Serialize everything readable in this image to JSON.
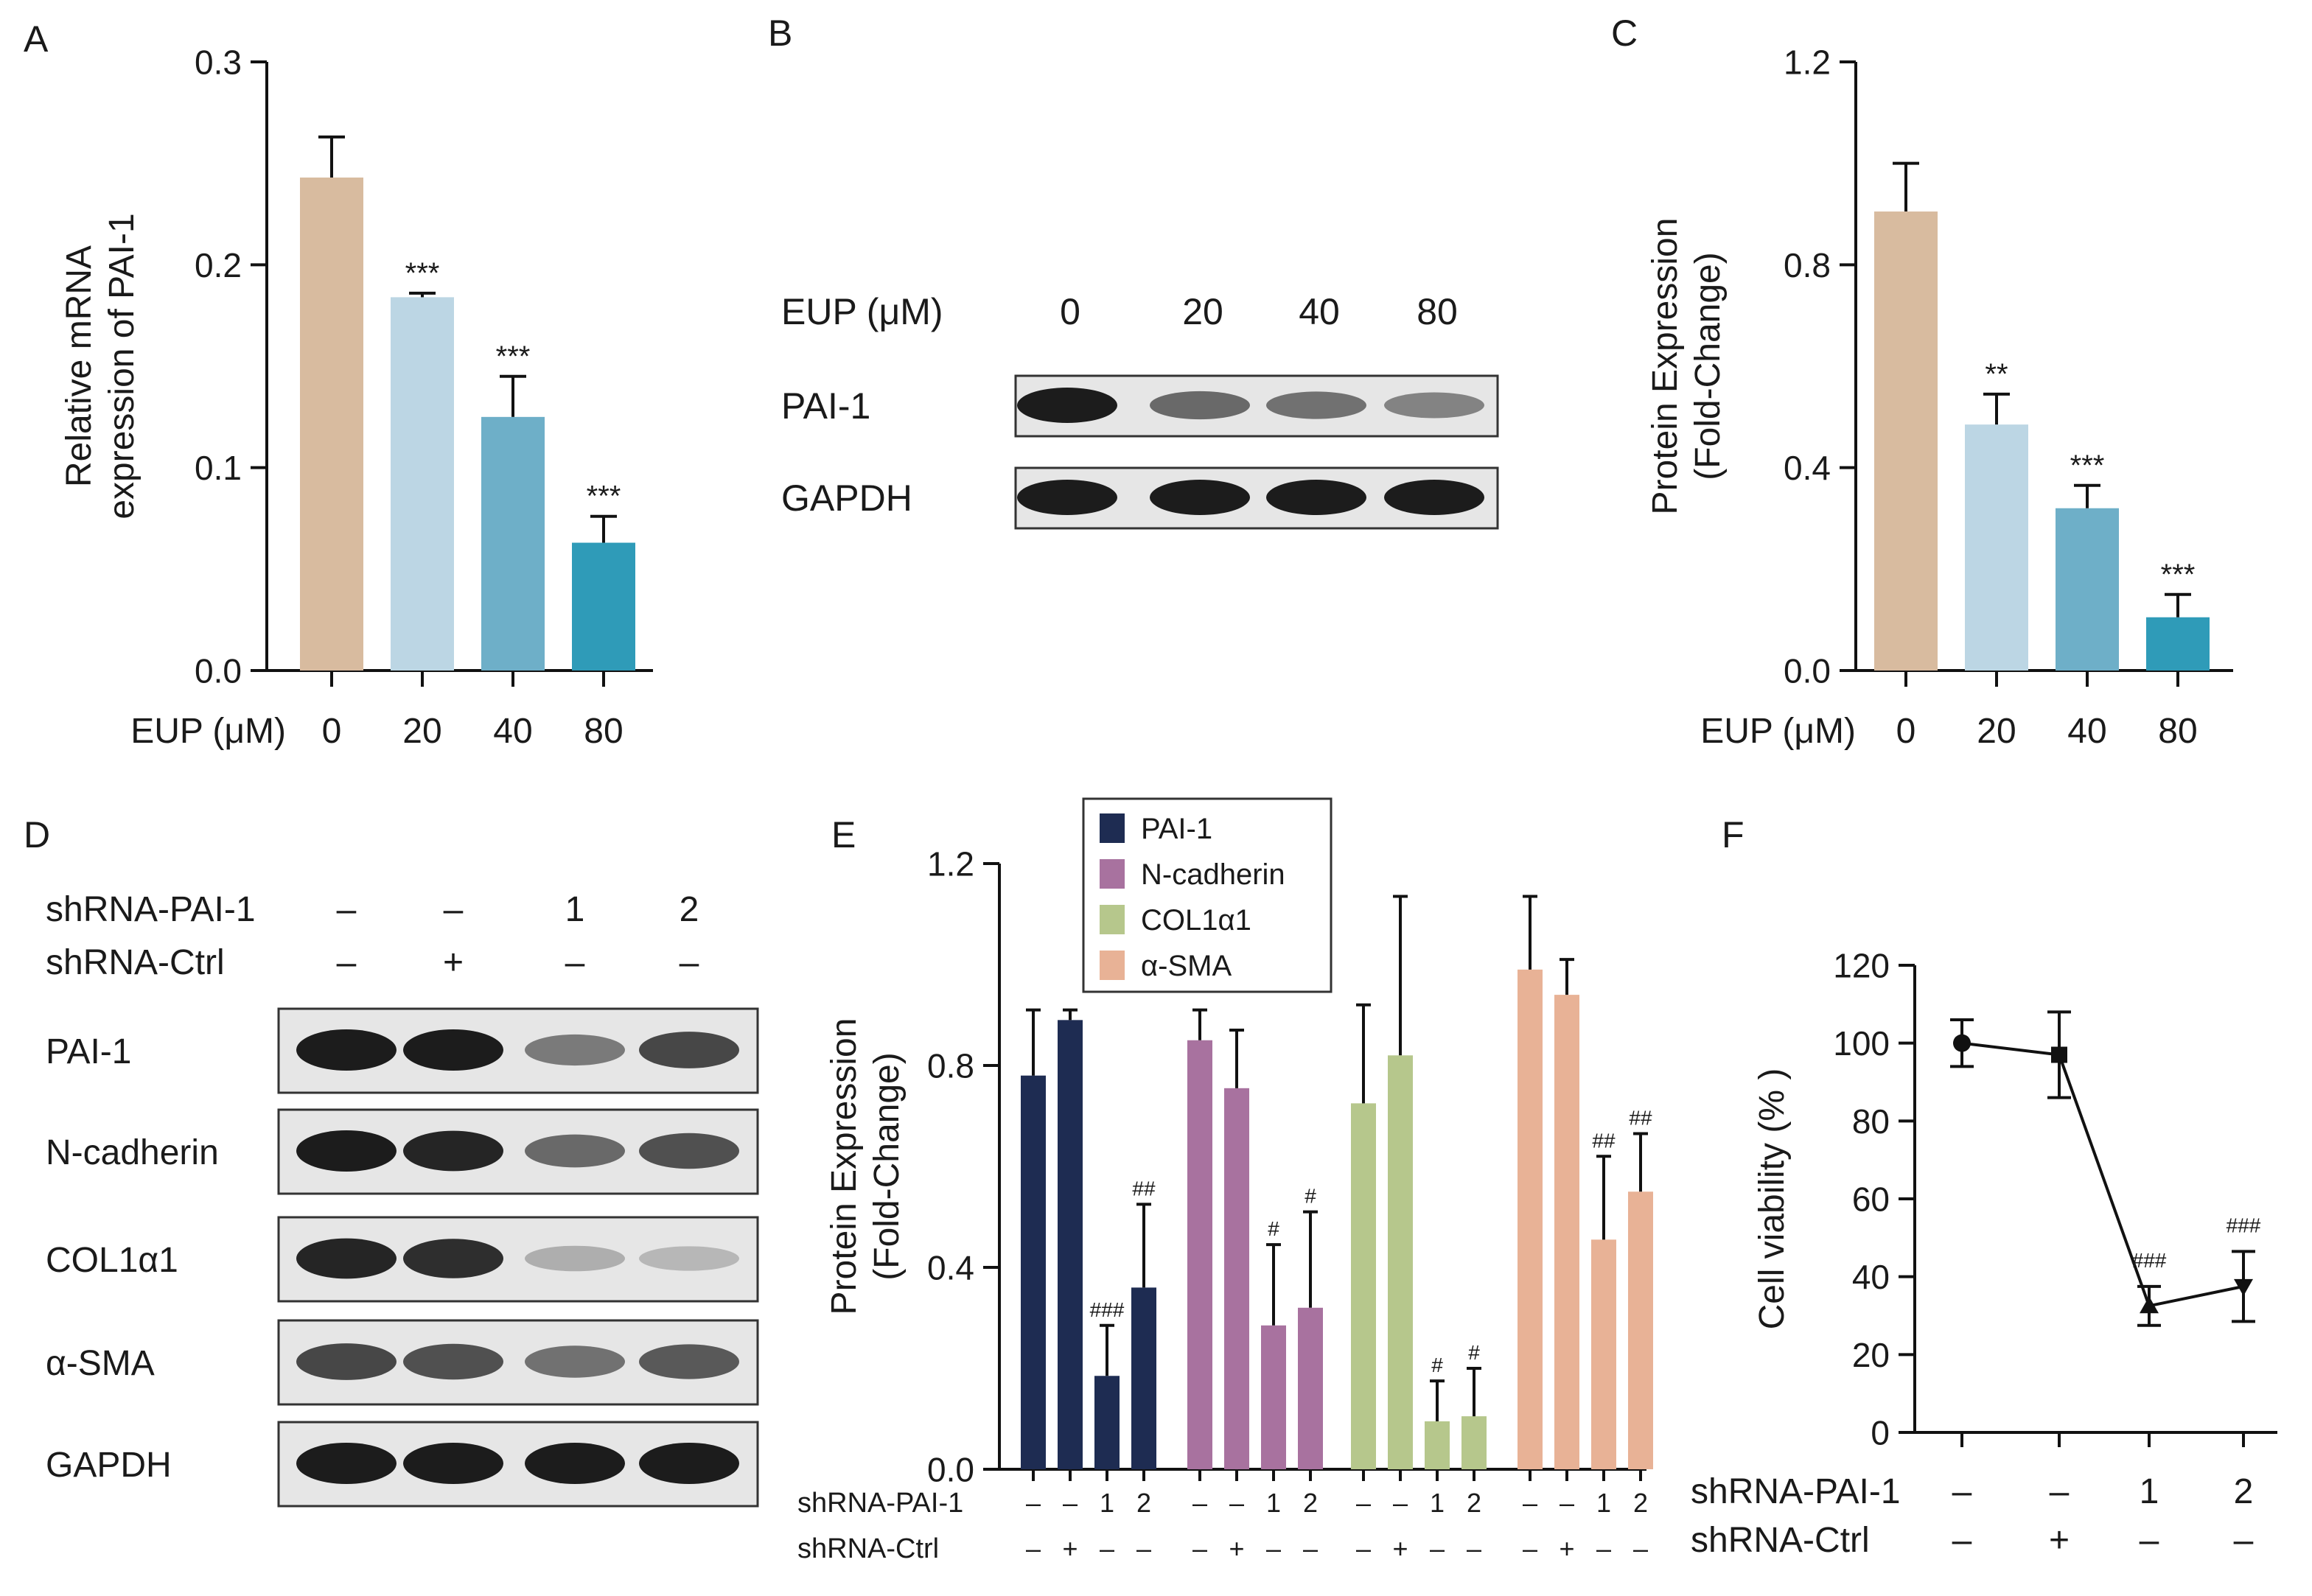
{
  "panels": {
    "A": "A",
    "B": "B",
    "C": "C",
    "D": "D",
    "E": "E",
    "F": "F"
  },
  "colors": {
    "c0": "#d8bb9f",
    "c20": "#bcd6e4",
    "c40": "#6eafc8",
    "c80": "#2f9bb8",
    "pai1": "#1e2c52",
    "ncad": "#a8729f",
    "col": "#b6c78c",
    "asma": "#e8b296",
    "line": "#111111",
    "band": "#1c1c1c"
  },
  "blot_B": {
    "header_label": "EUP (μM)",
    "lanes": [
      "0",
      "20",
      "40",
      "80"
    ],
    "rows": [
      {
        "label": "PAI-1",
        "intensity": [
          1.0,
          0.55,
          0.5,
          0.4
        ]
      },
      {
        "label": "GAPDH",
        "intensity": [
          1.0,
          1.0,
          1.0,
          1.0
        ]
      }
    ]
  },
  "blot_D": {
    "conditions": [
      {
        "label": "shRNA-PAI-1",
        "values": [
          "–",
          "–",
          "1",
          "2"
        ]
      },
      {
        "label": "shRNA-Ctrl",
        "values": [
          "–",
          "+",
          "–",
          "–"
        ]
      }
    ],
    "rows": [
      {
        "label": "PAI-1",
        "intensity": [
          1.0,
          1.0,
          0.45,
          0.75
        ]
      },
      {
        "label": "N-cadherin",
        "intensity": [
          1.0,
          0.95,
          0.55,
          0.7
        ]
      },
      {
        "label": "COL1α1",
        "intensity": [
          0.95,
          0.9,
          0.15,
          0.1
        ]
      },
      {
        "label": "α-SMA",
        "intensity": [
          0.75,
          0.7,
          0.5,
          0.65
        ]
      },
      {
        "label": "GAPDH",
        "intensity": [
          1.0,
          1.0,
          1.0,
          1.0
        ]
      }
    ]
  },
  "chart_data": [
    {
      "panel": "A",
      "type": "bar",
      "ylabel": [
        "Relative mRNA",
        "expression of PAI-1"
      ],
      "xlabel": "EUP (μM)",
      "categories": [
        "0",
        "20",
        "40",
        "80"
      ],
      "values": [
        0.243,
        0.184,
        0.125,
        0.063
      ],
      "errors": [
        0.02,
        0.002,
        0.02,
        0.013
      ],
      "annotations": [
        "",
        "***",
        "***",
        "***"
      ],
      "ylim": [
        0,
        0.3
      ],
      "yticks": [
        "0.0",
        "0.1",
        "0.2",
        "0.3"
      ],
      "bar_colors": [
        "#d8bb9f",
        "#bcd6e4",
        "#6eafc8",
        "#2f9bb8"
      ]
    },
    {
      "panel": "C",
      "type": "bar",
      "ylabel": [
        "Protein Expression",
        "(Fold-Change)"
      ],
      "xlabel": "EUP (μM)",
      "categories": [
        "0",
        "20",
        "40",
        "80"
      ],
      "values": [
        0.905,
        0.485,
        0.32,
        0.105
      ],
      "errors": [
        0.095,
        0.06,
        0.045,
        0.045
      ],
      "annotations": [
        "",
        "**",
        "***",
        "***"
      ],
      "ylim": [
        0,
        1.2
      ],
      "yticks": [
        "0.0",
        "0.4",
        "0.8",
        "1.2"
      ],
      "bar_colors": [
        "#d8bb9f",
        "#bcd6e4",
        "#6eafc8",
        "#2f9bb8"
      ]
    },
    {
      "panel": "E",
      "type": "bar",
      "ylabel": [
        "Protein Expression",
        "(Fold-Change)"
      ],
      "ylim": [
        0,
        1.2
      ],
      "yticks": [
        "0.0",
        "0.4",
        "0.8",
        "1.2"
      ],
      "legend": "top-center",
      "condition_rows": [
        {
          "label": "shRNA-PAI-1",
          "values": [
            "–",
            "–",
            "1",
            "2"
          ]
        },
        {
          "label": "shRNA-Ctrl",
          "values": [
            "–",
            "+",
            "–",
            "–"
          ]
        }
      ],
      "series": [
        {
          "name": "PAI-1",
          "color": "#1e2c52",
          "values": [
            0.78,
            0.89,
            0.185,
            0.36
          ],
          "errors": [
            0.13,
            0.02,
            0.1,
            0.165
          ],
          "annotations": [
            "",
            "",
            "###",
            "##"
          ]
        },
        {
          "name": "N-cadherin",
          "color": "#a8729f",
          "values": [
            0.85,
            0.755,
            0.285,
            0.32
          ],
          "errors": [
            0.06,
            0.115,
            0.16,
            0.19
          ],
          "annotations": [
            "",
            "",
            "#",
            "#"
          ]
        },
        {
          "name": "COL1α1",
          "color": "#b6c78c",
          "values": [
            0.725,
            0.82,
            0.095,
            0.105
          ],
          "errors": [
            0.195,
            0.315,
            0.08,
            0.095
          ],
          "annotations": [
            "",
            "",
            "#",
            "#"
          ]
        },
        {
          "name": "α-SMA",
          "color": "#e8b296",
          "values": [
            0.99,
            0.94,
            0.455,
            0.55
          ],
          "errors": [
            0.145,
            0.07,
            0.165,
            0.115
          ],
          "annotations": [
            "",
            "",
            "##",
            "##"
          ]
        }
      ]
    },
    {
      "panel": "F",
      "type": "line",
      "ylabel": "Cell viability (% )",
      "ylim": [
        0,
        120
      ],
      "yticks": [
        "0",
        "20",
        "40",
        "60",
        "80",
        "100",
        "120"
      ],
      "x": [
        "1",
        "2",
        "3",
        "4"
      ],
      "values": [
        100,
        97,
        32.5,
        37.5
      ],
      "errors": [
        6,
        11,
        5,
        9
      ],
      "markers": [
        "circle",
        "square",
        "triangle-up",
        "triangle-down"
      ],
      "annotations": [
        "",
        "",
        "###",
        "###"
      ],
      "condition_rows": [
        {
          "label": "shRNA-PAI-1",
          "values": [
            "–",
            "–",
            "1",
            "2"
          ]
        },
        {
          "label": "shRNA-Ctrl",
          "values": [
            "–",
            "+",
            "–",
            "–"
          ]
        }
      ]
    }
  ]
}
